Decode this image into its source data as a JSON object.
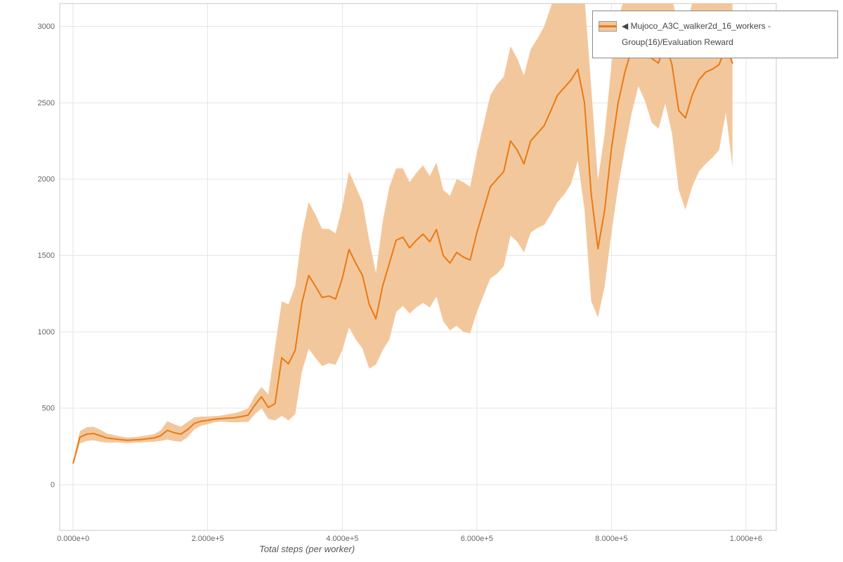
{
  "chart_data": {
    "type": "line",
    "title": "",
    "xlabel": "Total steps (per worker)",
    "ylabel": "",
    "xlim": [
      -20000,
      1045000
    ],
    "ylim": [
      -300,
      3150
    ],
    "grid": true,
    "legend_position": "top-right-outside",
    "x_ticks": [
      {
        "value": 0,
        "label": "0.000e+0"
      },
      {
        "value": 200000,
        "label": "2.000e+5"
      },
      {
        "value": 400000,
        "label": "4.000e+5"
      },
      {
        "value": 600000,
        "label": "6.000e+5"
      },
      {
        "value": 800000,
        "label": "8.000e+5"
      },
      {
        "value": 1000000,
        "label": "1.000e+6"
      }
    ],
    "y_ticks": [
      {
        "value": 0,
        "label": "0"
      },
      {
        "value": 500,
        "label": "500"
      },
      {
        "value": 1000,
        "label": "1000"
      },
      {
        "value": 1500,
        "label": "1500"
      },
      {
        "value": 2000,
        "label": "2000"
      },
      {
        "value": 2500,
        "label": "2500"
      },
      {
        "value": 3000,
        "label": "3000"
      }
    ],
    "series": [
      {
        "name": "Mujoco_A3C_walker2d_16_workers - Group(16)/Evaluation Reward",
        "color": "#e87a14",
        "band_color": "#f3c79c",
        "x": [
          0,
          10000,
          20000,
          30000,
          40000,
          50000,
          60000,
          70000,
          80000,
          90000,
          100000,
          110000,
          120000,
          130000,
          140000,
          150000,
          160000,
          170000,
          180000,
          190000,
          200000,
          210000,
          220000,
          230000,
          240000,
          250000,
          260000,
          270000,
          280000,
          290000,
          300000,
          310000,
          320000,
          330000,
          340000,
          350000,
          360000,
          370000,
          380000,
          390000,
          400000,
          410000,
          420000,
          430000,
          440000,
          450000,
          460000,
          470000,
          480000,
          490000,
          500000,
          510000,
          520000,
          530000,
          540000,
          550000,
          560000,
          570000,
          580000,
          590000,
          600000,
          610000,
          620000,
          630000,
          640000,
          650000,
          660000,
          670000,
          680000,
          690000,
          700000,
          710000,
          720000,
          730000,
          740000,
          750000,
          760000,
          770000,
          780000,
          790000,
          800000,
          810000,
          820000,
          830000,
          840000,
          850000,
          860000,
          870000,
          880000,
          890000,
          900000,
          910000,
          920000,
          930000,
          940000,
          950000,
          960000,
          970000,
          980000
        ],
        "mean": [
          140,
          310,
          330,
          335,
          320,
          305,
          300,
          295,
          290,
          292,
          295,
          300,
          305,
          320,
          355,
          340,
          330,
          360,
          400,
          415,
          420,
          428,
          432,
          435,
          438,
          445,
          455,
          520,
          575,
          505,
          530,
          830,
          790,
          880,
          1190,
          1370,
          1300,
          1225,
          1235,
          1215,
          1350,
          1540,
          1450,
          1370,
          1180,
          1085,
          1300,
          1450,
          1600,
          1620,
          1550,
          1600,
          1640,
          1590,
          1670,
          1500,
          1450,
          1520,
          1490,
          1470,
          1650,
          1800,
          1950,
          2000,
          2050,
          2250,
          2190,
          2100,
          2250,
          2300,
          2350,
          2450,
          2550,
          2600,
          2650,
          2720,
          2500,
          1900,
          1545,
          1800,
          2200,
          2500,
          2700,
          2850,
          2960,
          2890,
          2790,
          2760,
          2895,
          2750,
          2450,
          2400,
          2550,
          2650,
          2700,
          2720,
          2750,
          2865,
          2760
        ],
        "band_lower": [
          130,
          270,
          285,
          290,
          280,
          275,
          275,
          275,
          272,
          274,
          275,
          278,
          280,
          285,
          295,
          285,
          280,
          310,
          360,
          385,
          395,
          408,
          412,
          410,
          408,
          410,
          410,
          460,
          500,
          430,
          420,
          450,
          420,
          460,
          740,
          890,
          830,
          775,
          795,
          785,
          880,
          1030,
          950,
          890,
          760,
          785,
          880,
          950,
          1130,
          1170,
          1120,
          1160,
          1190,
          1160,
          1230,
          1070,
          1010,
          1040,
          1000,
          990,
          1130,
          1240,
          1350,
          1380,
          1430,
          1630,
          1590,
          1520,
          1650,
          1680,
          1700,
          1770,
          1850,
          1900,
          1970,
          2120,
          1800,
          1200,
          1095,
          1300,
          1650,
          1950,
          2200,
          2430,
          2610,
          2510,
          2370,
          2330,
          2495,
          2300,
          1930,
          1800,
          1950,
          2050,
          2100,
          2140,
          2190,
          2435,
          2080
        ],
        "band_upper": [
          150,
          350,
          375,
          380,
          360,
          335,
          325,
          315,
          308,
          310,
          315,
          322,
          330,
          355,
          415,
          395,
          380,
          410,
          440,
          445,
          445,
          448,
          452,
          460,
          468,
          480,
          500,
          580,
          640,
          590,
          900,
          1200,
          1180,
          1300,
          1640,
          1850,
          1770,
          1675,
          1675,
          1645,
          1820,
          2050,
          1950,
          1850,
          1600,
          1385,
          1720,
          1950,
          2070,
          2070,
          1980,
          2040,
          2090,
          2020,
          2110,
          1930,
          1890,
          2000,
          1980,
          1950,
          2170,
          2360,
          2550,
          2620,
          2670,
          2870,
          2790,
          2680,
          2850,
          2920,
          3000,
          3130,
          3250,
          3300,
          3330,
          3320,
          3200,
          2600,
          1995,
          2300,
          2750,
          3050,
          3200,
          3270,
          3310,
          3270,
          3210,
          3190,
          3295,
          3200,
          2970,
          3000,
          3150,
          3250,
          3300,
          3300,
          3310,
          3295,
          3440
        ]
      }
    ]
  },
  "legend": {
    "collapse_icon": "◀",
    "series_label": "Mujoco_A3C_walker2d_16_workers - Group(16)/Evaluation Reward"
  },
  "colors": {
    "grid": "#e6e6e6",
    "plot_border": "#c9c9c9",
    "tick_text": "#666666",
    "axis_title_text": "#555555",
    "legend_border": "#8a8a8a",
    "legend_text": "#454545"
  }
}
